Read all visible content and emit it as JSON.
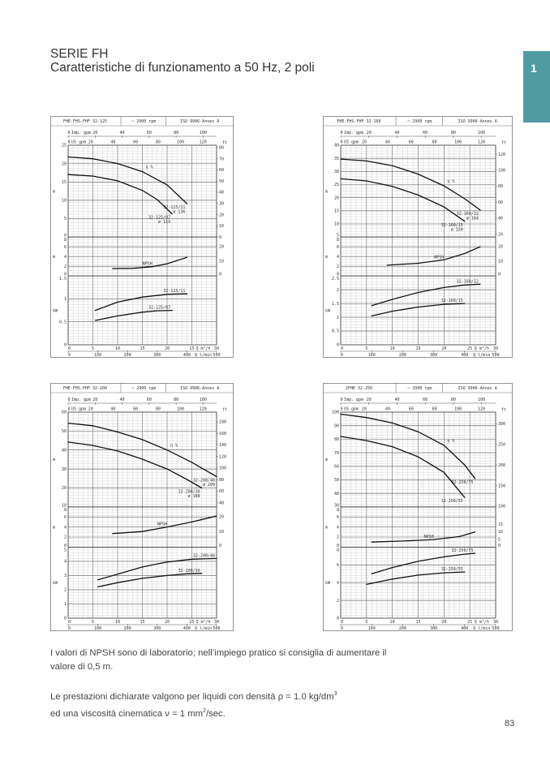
{
  "header": {
    "series": "SERIE FH",
    "subtitle": "Caratteristiche di funzionamento a 50 Hz, 2 poli",
    "tab_number": "1",
    "tab_color": "#4f9ba4"
  },
  "chart_data": [
    {
      "type": "line",
      "header": {
        "model": "FHE-FHS-FHF 32-125",
        "rpm": "~ 2900 rpm",
        "standard": "ISO 9906-Annex A"
      },
      "top_axes": {
        "imp_label": "Imp. gpm",
        "imp_ticks": [
          0,
          20,
          40,
          60,
          80,
          100
        ],
        "us_label": "US gpm",
        "us_ticks": [
          0,
          20,
          40,
          60,
          80,
          100,
          120
        ]
      },
      "x": {
        "label": "Q m³/h",
        "range": [
          0,
          30
        ],
        "ticks": [
          0,
          5,
          10,
          15,
          20,
          25,
          30
        ]
      },
      "lmin": {
        "label": "Q l/min",
        "ticks": [
          0,
          100,
          200,
          300,
          400,
          500
        ]
      },
      "eta_label": "η %",
      "head": {
        "unit": "m",
        "ft_unit": "ft",
        "range": [
          0,
          25
        ],
        "ticks": [
          0,
          5,
          10,
          15,
          20,
          25
        ],
        "ft_ticks": [
          0,
          10,
          20,
          30,
          40,
          50,
          60,
          70,
          80
        ],
        "curves": [
          {
            "name": "32-125/11",
            "diameter": "ø 136",
            "points": [
              [
                0,
                21.8
              ],
              [
                5,
                21.3
              ],
              [
                10,
                20.0
              ],
              [
                15,
                17.8
              ],
              [
                20,
                14.2
              ],
              [
                24,
                9.1
              ]
            ]
          },
          {
            "name": "32-125/07",
            "diameter": "ø 119",
            "points": [
              [
                0,
                17.0
              ],
              [
                5,
                16.6
              ],
              [
                10,
                15.3
              ],
              [
                15,
                12.7
              ],
              [
                18,
                10.2
              ],
              [
                21,
                6.3
              ]
            ]
          }
        ]
      },
      "npsh": {
        "label": "NPSH",
        "unit": "m",
        "range": [
          0,
          8
        ],
        "ticks": [
          0,
          2,
          4,
          6,
          8
        ],
        "ft_ticks": [
          0,
          10,
          20
        ],
        "points": [
          [
            9,
            1.5
          ],
          [
            13,
            1.55
          ],
          [
            17,
            1.9
          ],
          [
            20,
            2.5
          ],
          [
            24,
            3.8
          ]
        ]
      },
      "power": {
        "unit": "kW",
        "range": [
          0,
          1.5
        ],
        "ticks": [
          0,
          0.5,
          1,
          1.5
        ],
        "curves": [
          {
            "name": "32-125/11",
            "points": [
              [
                5.5,
                0.75
              ],
              [
                10,
                0.93
              ],
              [
                15,
                1.04
              ],
              [
                20,
                1.1
              ],
              [
                24,
                1.11
              ]
            ]
          },
          {
            "name": "32-125/07",
            "points": [
              [
                5.5,
                0.53
              ],
              [
                10,
                0.63
              ],
              [
                15,
                0.71
              ],
              [
                18,
                0.74
              ],
              [
                21,
                0.75
              ]
            ]
          }
        ]
      }
    },
    {
      "type": "line",
      "header": {
        "model": "FHE-FHS-FHF 32-160",
        "rpm": "~ 2900 rpm",
        "standard": "ISO 9906-Annex A"
      },
      "top_axes": {
        "imp_label": "Imp. gpm",
        "imp_ticks": [
          0,
          20,
          40,
          60,
          80,
          100
        ],
        "us_label": "US gpm",
        "us_ticks": [
          0,
          20,
          40,
          60,
          80,
          100,
          120
        ]
      },
      "x": {
        "label": "Q m³/h",
        "range": [
          0,
          30
        ],
        "ticks": [
          0,
          5,
          10,
          15,
          20,
          25,
          30
        ]
      },
      "lmin": {
        "label": "Q l/min",
        "ticks": [
          0,
          100,
          200,
          300,
          400,
          500
        ]
      },
      "eta_label": "η %",
      "head": {
        "unit": "m",
        "ft_unit": "ft",
        "range": [
          5,
          40
        ],
        "ticks": [
          5,
          10,
          15,
          20,
          25,
          30,
          35,
          40
        ],
        "ft_ticks": [
          20,
          40,
          60,
          80,
          100,
          120
        ],
        "curves": [
          {
            "name": "32-160/22",
            "diameter": "ø 164",
            "points": [
              [
                0,
                34.7
              ],
              [
                5,
                34.0
              ],
              [
                10,
                32.2
              ],
              [
                15,
                29.0
              ],
              [
                20,
                24.5
              ],
              [
                24,
                19.6
              ],
              [
                27,
                15.3
              ]
            ]
          },
          {
            "name": "32-160/15",
            "diameter": "ø 150",
            "points": [
              [
                0,
                27.2
              ],
              [
                5,
                26.4
              ],
              [
                10,
                24.3
              ],
              [
                15,
                21.0
              ],
              [
                20,
                16.5
              ],
              [
                24,
                11.0
              ]
            ]
          }
        ]
      },
      "npsh": {
        "label": "NPSH",
        "unit": "m",
        "range": [
          0,
          8
        ],
        "ticks": [
          0,
          2,
          4,
          6,
          8
        ],
        "ft_ticks": [
          0,
          10,
          20
        ],
        "points": [
          [
            9,
            2.2
          ],
          [
            15,
            2.6
          ],
          [
            20,
            3.3
          ],
          [
            24,
            4.6
          ],
          [
            27,
            6.0
          ]
        ]
      },
      "power": {
        "unit": "kW",
        "range": [
          0,
          2.5
        ],
        "ticks": [
          0,
          0.5,
          1,
          1.5,
          2,
          2.5
        ],
        "curves": [
          {
            "name": "32-160/22",
            "points": [
              [
                6,
                1.42
              ],
              [
                10,
                1.65
              ],
              [
                15,
                1.9
              ],
              [
                20,
                2.08
              ],
              [
                24,
                2.17
              ],
              [
                27,
                2.2
              ]
            ]
          },
          {
            "name": "32-160/15",
            "points": [
              [
                6,
                1.05
              ],
              [
                10,
                1.22
              ],
              [
                15,
                1.37
              ],
              [
                20,
                1.47
              ],
              [
                24,
                1.5
              ]
            ]
          }
        ]
      }
    },
    {
      "type": "line",
      "header": {
        "model": "FHE-FHS-FHF 32-200",
        "rpm": "~ 2900 rpm",
        "standard": "ISO 9906-Annex A"
      },
      "top_axes": {
        "imp_label": "Imp. gpm",
        "imp_ticks": [
          0,
          20,
          40,
          60,
          80,
          100
        ],
        "us_label": "US gpm",
        "us_ticks": [
          0,
          20,
          40,
          60,
          80,
          100,
          120
        ]
      },
      "x": {
        "label": "Q m³/h",
        "range": [
          0,
          30
        ],
        "ticks": [
          0,
          5,
          10,
          15,
          20,
          25,
          30
        ]
      },
      "lmin": {
        "label": "Q l/min",
        "ticks": [
          0,
          100,
          200,
          300,
          400,
          500
        ]
      },
      "eta_label": "η %",
      "head": {
        "unit": "m",
        "ft_unit": "ft",
        "range": [
          10,
          60
        ],
        "ticks": [
          10,
          20,
          30,
          40,
          50,
          60
        ],
        "ft_ticks": [
          40,
          60,
          80,
          100,
          120,
          140,
          160,
          180
        ],
        "curves": [
          {
            "name": "32-200/40",
            "diameter": "ø 209",
            "points": [
              [
                0,
                54.2
              ],
              [
                5,
                52.8
              ],
              [
                10,
                49.5
              ],
              [
                15,
                45.5
              ],
              [
                20,
                40.0
              ],
              [
                25,
                33.5
              ],
              [
                30,
                26.0
              ]
            ]
          },
          {
            "name": "32-200/30",
            "diameter": "ø 188",
            "points": [
              [
                0,
                44.2
              ],
              [
                5,
                42.4
              ],
              [
                10,
                39.5
              ],
              [
                15,
                35.2
              ],
              [
                20,
                30.0
              ],
              [
                24,
                24.5
              ],
              [
                27,
                20.0
              ]
            ]
          }
        ]
      },
      "npsh": {
        "label": "NPSH",
        "unit": "m",
        "range": [
          0,
          8
        ],
        "ticks": [
          0,
          2,
          4,
          6,
          8
        ],
        "ft_ticks": [
          0,
          10,
          20
        ],
        "points": [
          [
            9,
            2.7
          ],
          [
            15,
            3.1
          ],
          [
            20,
            4.0
          ],
          [
            25,
            5.0
          ],
          [
            30,
            6.2
          ]
        ]
      },
      "power": {
        "unit": "kW",
        "range": [
          0,
          5
        ],
        "ticks": [
          0,
          1,
          2,
          3,
          4,
          5
        ],
        "curves": [
          {
            "name": "32-200/40",
            "points": [
              [
                6,
                2.7
              ],
              [
                10,
                3.1
              ],
              [
                15,
                3.6
              ],
              [
                20,
                3.95
              ],
              [
                25,
                4.15
              ],
              [
                30,
                4.2
              ]
            ]
          },
          {
            "name": "32-200/30",
            "points": [
              [
                6,
                2.2
              ],
              [
                10,
                2.5
              ],
              [
                15,
                2.8
              ],
              [
                20,
                3.0
              ],
              [
                24,
                3.12
              ],
              [
                27,
                3.15
              ]
            ]
          }
        ]
      }
    },
    {
      "type": "line",
      "header": {
        "model": "2FHE 32-250",
        "rpm": "~ 2900 rpm",
        "standard": "ISO 9906-Annex A"
      },
      "top_axes": {
        "imp_label": "Imp. gpm",
        "imp_ticks": [
          0,
          20,
          40,
          60,
          80,
          100
        ],
        "us_label": "US gpm",
        "us_ticks": [
          0,
          20,
          40,
          60,
          80,
          100,
          120
        ]
      },
      "x": {
        "label": "Q m³/h",
        "range": [
          0,
          30
        ],
        "ticks": [
          0,
          5,
          10,
          15,
          20,
          25,
          30
        ]
      },
      "lmin": {
        "label": "Q l/min",
        "ticks": [
          0,
          100,
          200,
          300,
          400,
          500
        ]
      },
      "eta_label": "η %",
      "head": {
        "unit": "m",
        "ft_unit": "ft",
        "range": [
          30,
          100
        ],
        "ticks": [
          30,
          40,
          50,
          60,
          70,
          80,
          90,
          100
        ],
        "ft_ticks": [
          100,
          150,
          200,
          250,
          300
        ],
        "curves": [
          {
            "name": "32-250/75",
            "diameter": "",
            "points": [
              [
                0,
                98.5
              ],
              [
                5,
                96.0
              ],
              [
                10,
                92.0
              ],
              [
                15,
                85.5
              ],
              [
                20,
                75.5
              ],
              [
                24,
                61.0
              ],
              [
                26,
                51.0
              ]
            ]
          },
          {
            "name": "32-250/55",
            "diameter": "",
            "points": [
              [
                0,
                82.0
              ],
              [
                5,
                79.0
              ],
              [
                10,
                74.5
              ],
              [
                15,
                67.0
              ],
              [
                20,
                55.5
              ],
              [
                24,
                37.0
              ]
            ]
          }
        ]
      },
      "npsh": {
        "label": "NPSH",
        "unit": "m",
        "range": [
          0,
          8
        ],
        "ticks": [
          0,
          2,
          4,
          6,
          8
        ],
        "ft_ticks": [
          0,
          5,
          10,
          15
        ],
        "points": [
          [
            6,
            1.0
          ],
          [
            12,
            1.2
          ],
          [
            18,
            1.5
          ],
          [
            23,
            2.1
          ],
          [
            26,
            3.0
          ]
        ]
      },
      "power": {
        "unit": "kW",
        "range": [
          0,
          8
        ],
        "ticks": [
          0,
          2,
          4,
          6,
          8
        ],
        "curves": [
          {
            "name": "32-250/75",
            "points": [
              [
                6,
                5.0
              ],
              [
                10,
                5.7
              ],
              [
                15,
                6.4
              ],
              [
                20,
                6.9
              ],
              [
                24,
                7.2
              ],
              [
                26,
                7.3
              ]
            ]
          },
          {
            "name": "32-250/55",
            "points": [
              [
                5,
                3.8
              ],
              [
                10,
                4.4
              ],
              [
                15,
                4.85
              ],
              [
                20,
                5.1
              ],
              [
                24,
                5.2
              ]
            ]
          }
        ]
      }
    }
  ],
  "notes": {
    "npsh_line1": "I valori di NPSH sono di laboratorio; nell’impiego pratico si consiglia di aumentare il",
    "npsh_line2": "valore di 0,5 m.",
    "perf_line1": "Le prestazioni dichiarate valgono per liquidi con densità ρ = 1.0 kg/dm",
    "perf_sup1": "3",
    "perf_line2a": "ed una viscosità cinematica ν = 1 mm",
    "perf_sup2": "2",
    "perf_line2b": "/sec."
  },
  "page_number": "83"
}
